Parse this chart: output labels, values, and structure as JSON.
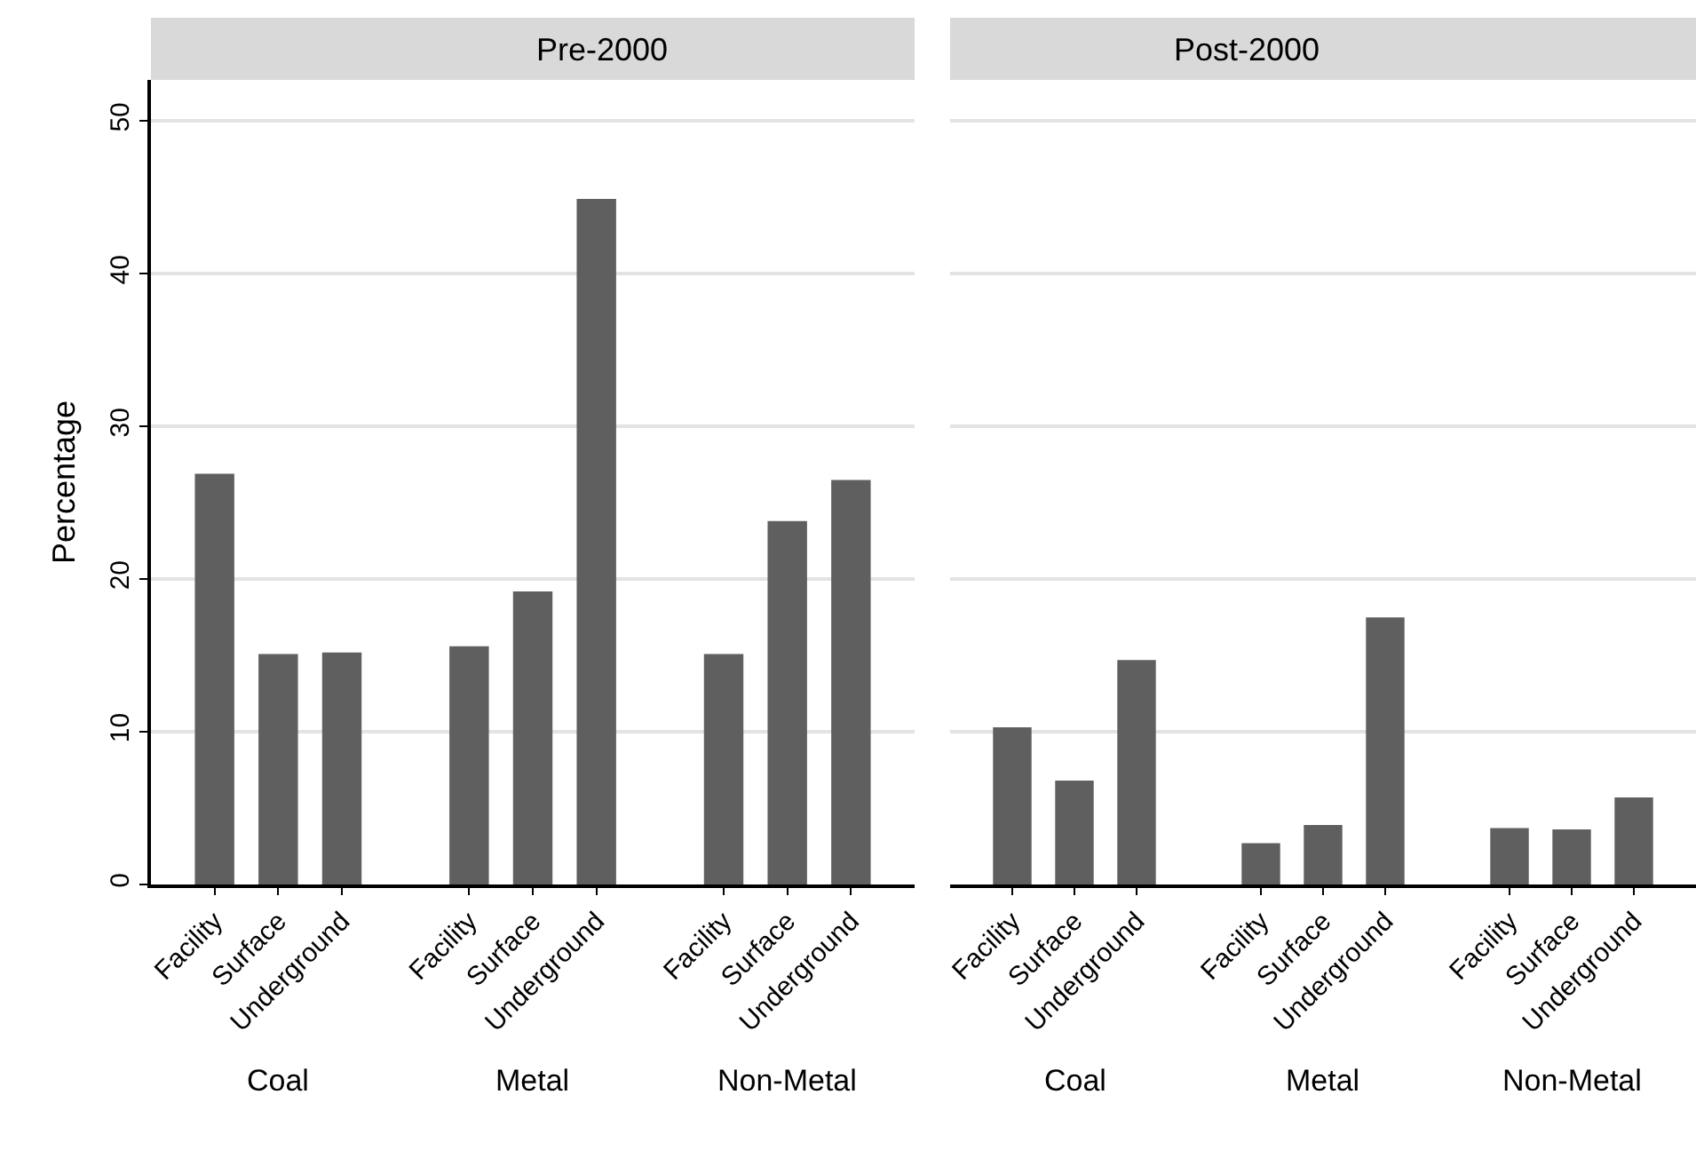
{
  "chart_data": [
    {
      "type": "bar",
      "title": "Pre-2000",
      "ylabel": "Percentage",
      "categories": [
        "Facility",
        "Surface",
        "Underground",
        null,
        "Facility",
        "Surface",
        "Underground",
        null,
        "Facility",
        "Surface",
        "Underground"
      ],
      "values": [
        26.9,
        15.1,
        15.2,
        null,
        15.6,
        19.2,
        44.9,
        null,
        15.1,
        23.8,
        26.5
      ],
      "color": "#5f5f5f",
      "ylim": [
        0,
        52.7
      ],
      "yticks": [
        0,
        10,
        20,
        30,
        40,
        50
      ],
      "grid": "y",
      "annotations": [
        "Coal",
        "Metal",
        "Non-Metal"
      ]
    },
    {
      "type": "bar",
      "title": "Post-2000",
      "categories": [
        "Facility",
        "Surface",
        "Underground",
        null,
        "Facility",
        "Surface",
        "Underground",
        null,
        "Facility",
        "Surface",
        "Underground"
      ],
      "values": [
        10.3,
        6.8,
        14.7,
        null,
        2.7,
        3.9,
        17.5,
        null,
        3.7,
        3.6,
        5.7
      ],
      "color": "#5f5f5f",
      "yticks": [
        0,
        10,
        20,
        30,
        40,
        50
      ],
      "grid": "y",
      "tick_labels": "x",
      "annotations": [
        "Coal",
        "Metal",
        "Non-Metal"
      ]
    }
  ]
}
